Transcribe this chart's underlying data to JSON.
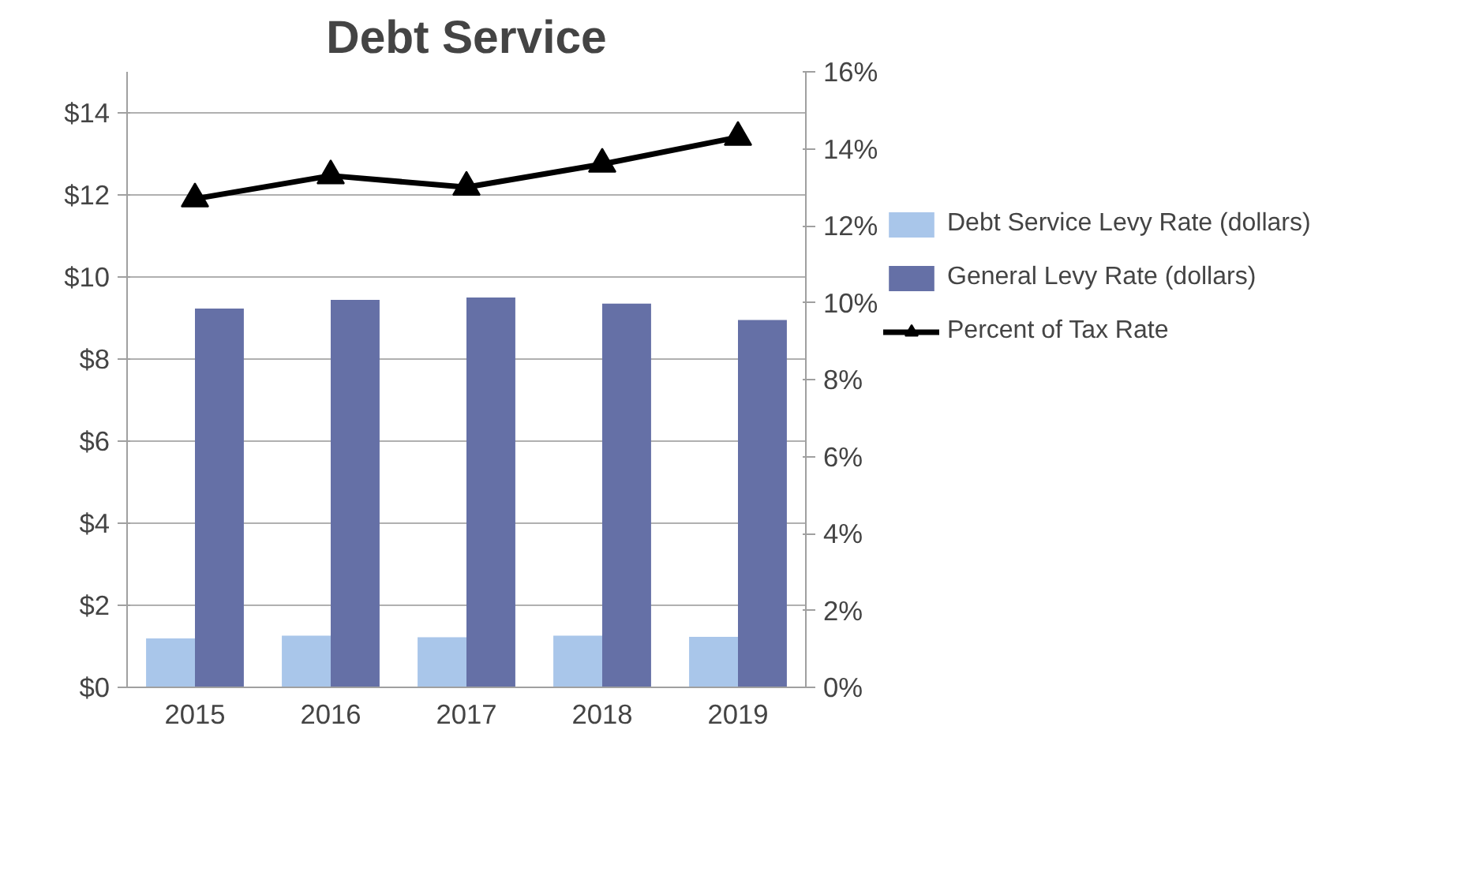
{
  "chart_data": {
    "type": "bar",
    "title": "Debt Service",
    "categories": [
      "2015",
      "2016",
      "2017",
      "2018",
      "2019"
    ],
    "series": [
      {
        "name": "Debt Service Levy Rate (dollars)",
        "color": "#a9c6ea",
        "values": [
          1.19,
          1.26,
          1.22,
          1.26,
          1.23
        ]
      },
      {
        "name": "General Levy Rate (dollars)",
        "color": "#6570a6",
        "values": [
          9.23,
          9.44,
          9.5,
          9.35,
          8.95
        ]
      },
      {
        "name": "Percent of Tax Rate",
        "type": "line",
        "axis": "y2",
        "color": "#000000",
        "marker": "triangle",
        "values": [
          12.7,
          13.3,
          13.0,
          13.6,
          14.3
        ]
      }
    ],
    "ylim": [
      0,
      15
    ],
    "yticks": [
      {
        "value": 0,
        "label": "$0"
      },
      {
        "value": 2,
        "label": "$2"
      },
      {
        "value": 4,
        "label": "$4"
      },
      {
        "value": 6,
        "label": "$6"
      },
      {
        "value": 8,
        "label": "$8"
      },
      {
        "value": 10,
        "label": "$10"
      },
      {
        "value": 12,
        "label": "$12"
      },
      {
        "value": 14,
        "label": "$14"
      }
    ],
    "y2lim": [
      0,
      16
    ],
    "y2ticks": [
      {
        "value": 0,
        "label": "0%"
      },
      {
        "value": 2,
        "label": "2%"
      },
      {
        "value": 4,
        "label": "4%"
      },
      {
        "value": 6,
        "label": "6%"
      },
      {
        "value": 8,
        "label": "8%"
      },
      {
        "value": 10,
        "label": "10%"
      },
      {
        "value": 12,
        "label": "12%"
      },
      {
        "value": 14,
        "label": "14%"
      },
      {
        "value": 16,
        "label": "16%"
      }
    ],
    "grid": "y",
    "legend": "right"
  }
}
